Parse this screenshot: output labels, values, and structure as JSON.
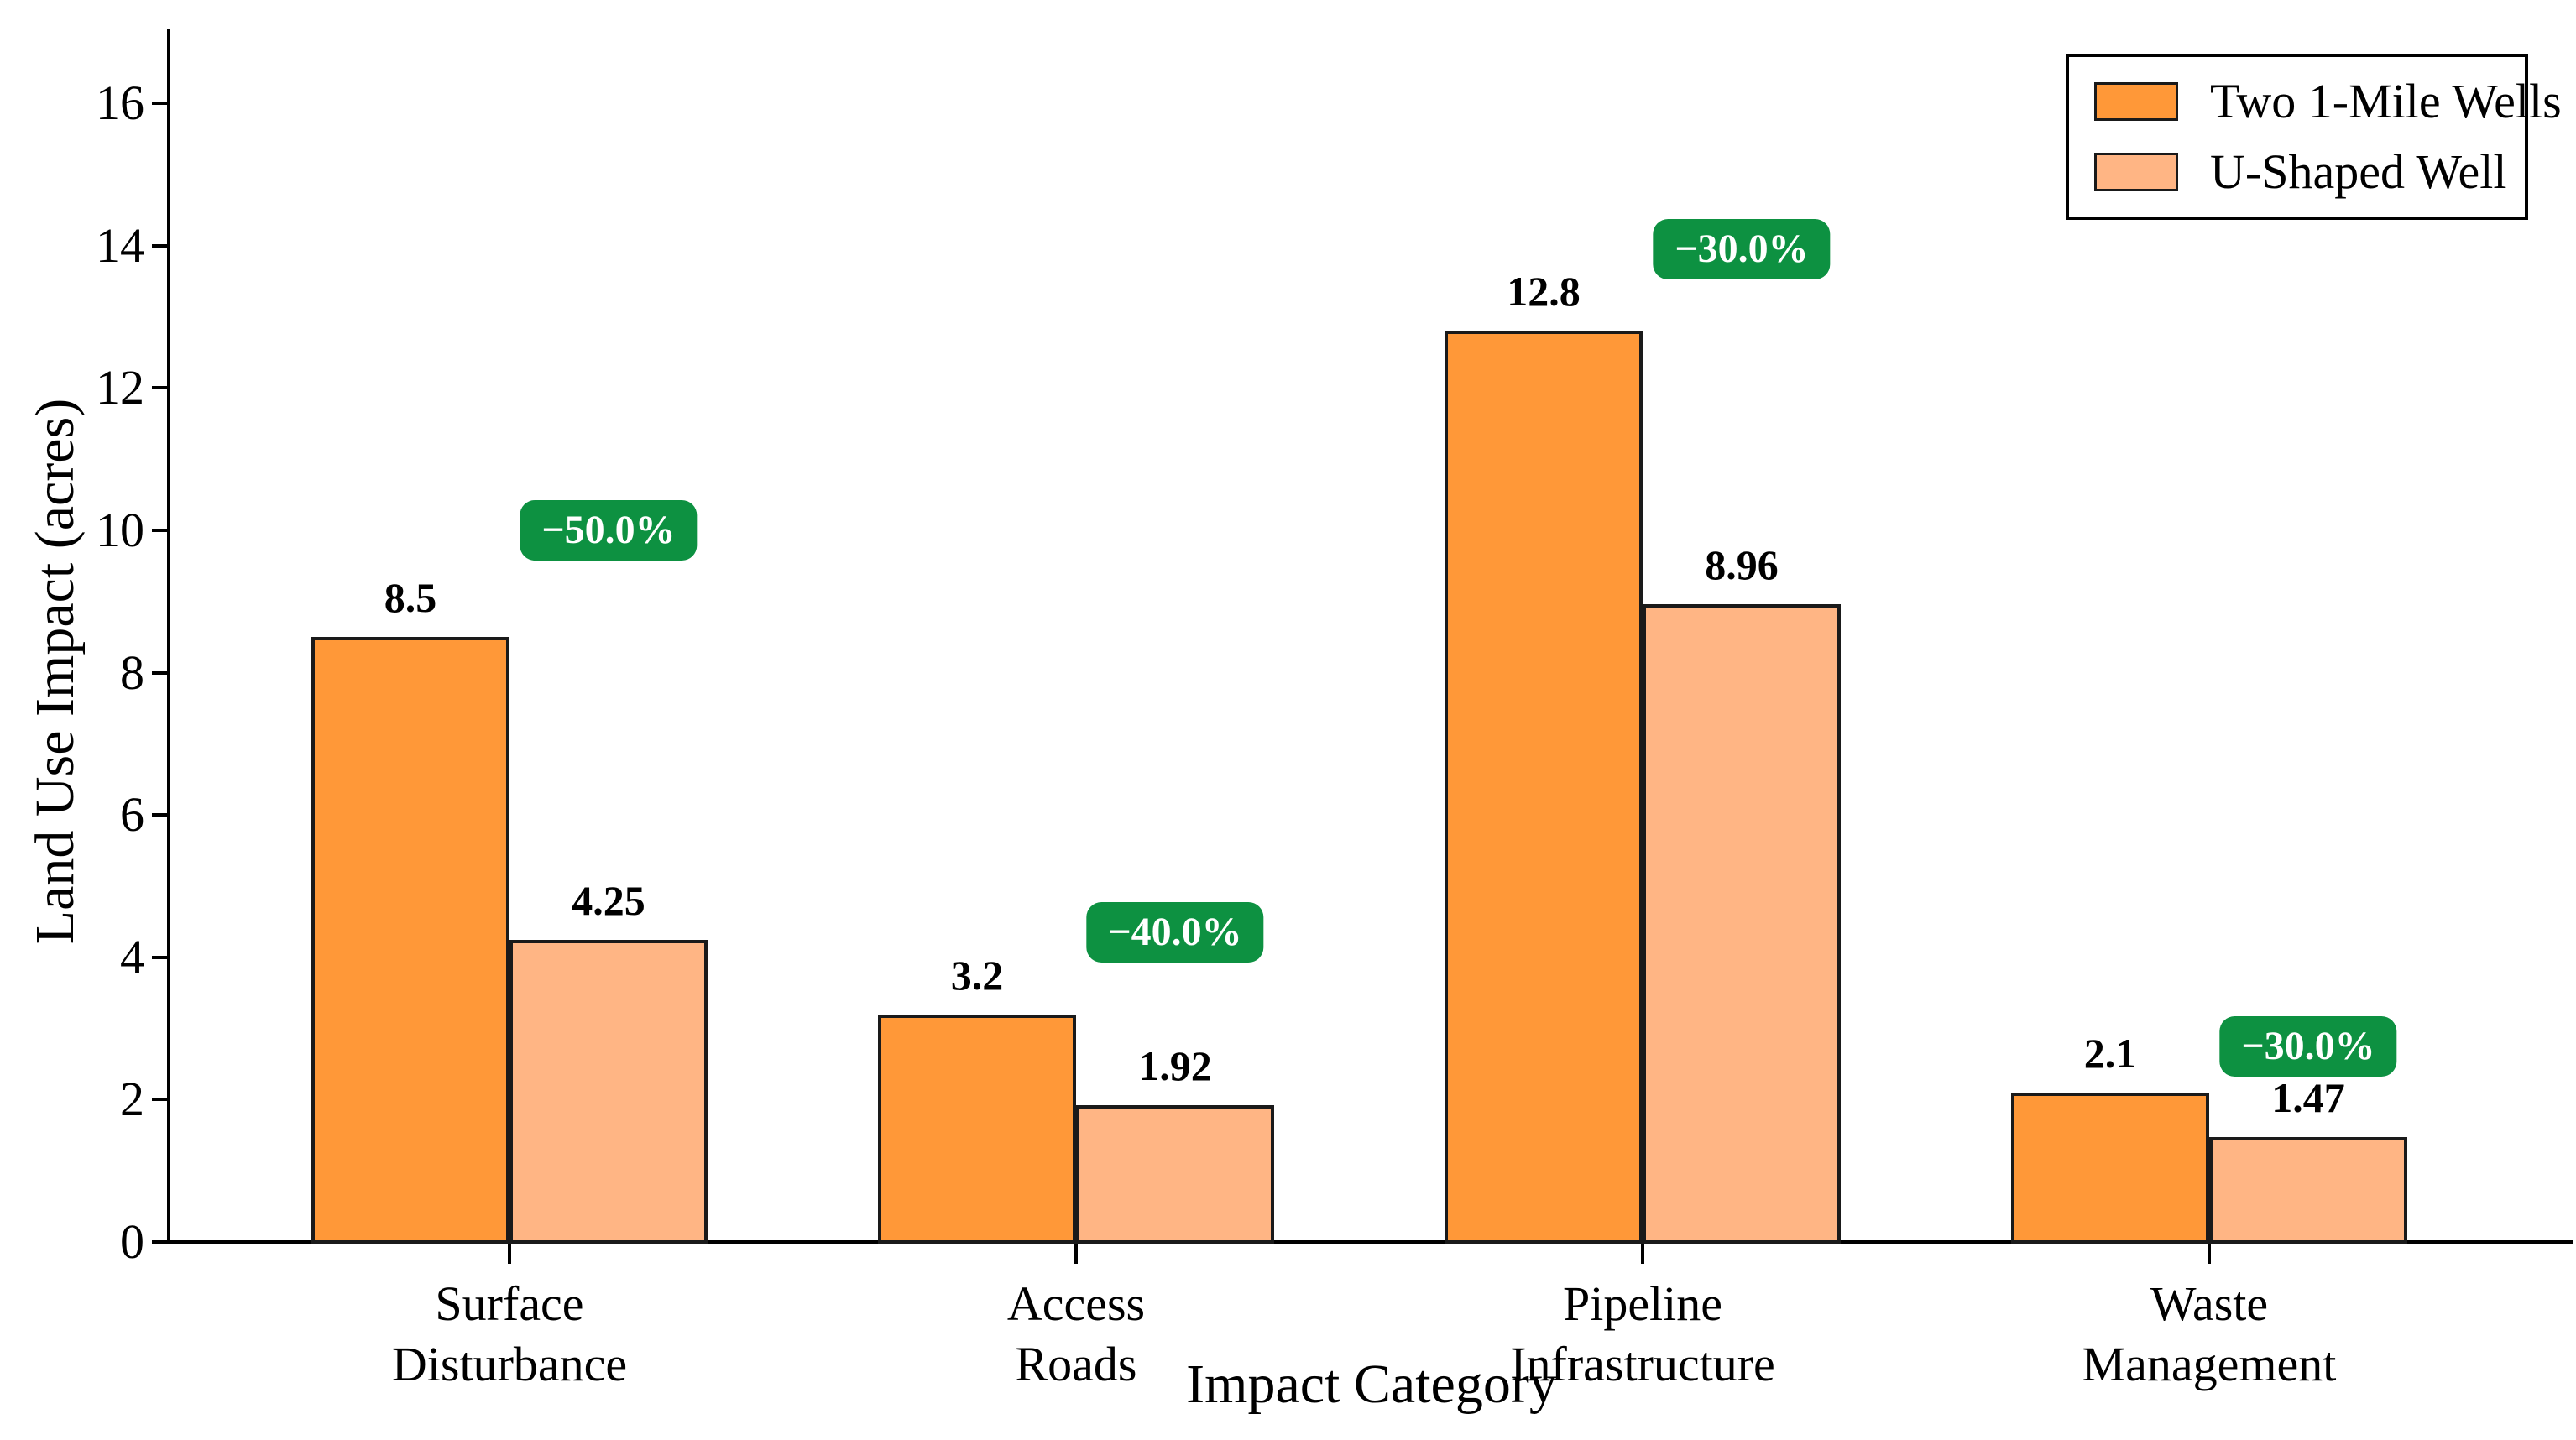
{
  "chart_data": {
    "type": "bar",
    "title": "",
    "xlabel": "Impact Category",
    "ylabel": "Land Use Impact (acres)",
    "categories": [
      "Surface Disturbance",
      "Access Roads",
      "Pipeline Infrastructure",
      "Waste Management"
    ],
    "category_lines": [
      [
        "Surface",
        "Disturbance"
      ],
      [
        "Access",
        "Roads"
      ],
      [
        "Pipeline",
        "Infrastructure"
      ],
      [
        "Waste",
        "Management"
      ]
    ],
    "series": [
      {
        "name": "Two 1-Mile Wells",
        "color": "#ff9838",
        "values": [
          8.5,
          3.2,
          12.8,
          2.1
        ],
        "value_labels": [
          "8.5",
          "3.2",
          "12.8",
          "2.1"
        ]
      },
      {
        "name": "U-Shaped Well",
        "color": "#ffb584",
        "values": [
          4.25,
          1.92,
          8.96,
          1.47
        ],
        "value_labels": [
          "4.25",
          "1.92",
          "8.96",
          "1.47"
        ]
      }
    ],
    "annotations": [
      {
        "text": "−50.0%",
        "group": 0,
        "y": 10.0
      },
      {
        "text": "−40.0%",
        "group": 1,
        "y": 4.35
      },
      {
        "text": "−30.0%",
        "group": 2,
        "y": 13.95
      },
      {
        "text": "−30.0%",
        "group": 3,
        "y": 2.75
      }
    ],
    "annotation_bg": "#0d9141",
    "annotation_text_color": "#ffffff",
    "bar_edge_color": "#1a1a1a",
    "ylim": [
      0,
      17.0
    ],
    "yticks": [
      "0",
      "2",
      "4",
      "6",
      "8",
      "10",
      "12",
      "14",
      "16"
    ],
    "grid": false,
    "legend_position": "upper right"
  }
}
